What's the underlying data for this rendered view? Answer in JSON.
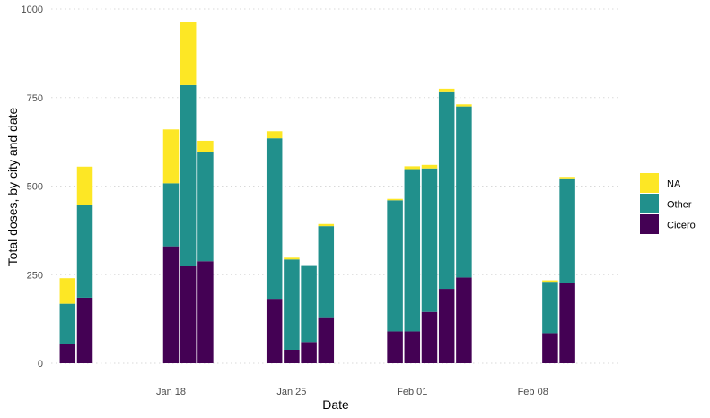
{
  "chart_data": {
    "type": "bar",
    "stacked": true,
    "xlabel": "Date",
    "ylabel": "Total doses, by city and date",
    "ylim": [
      0,
      1000
    ],
    "yticks": [
      0,
      250,
      500,
      750,
      1000
    ],
    "xticks": [
      {
        "label": "Jan 18",
        "date": "2021-01-18"
      },
      {
        "label": "Jan 25",
        "date": "2021-01-25"
      },
      {
        "label": "Feb 01",
        "date": "2021-02-01"
      },
      {
        "label": "Feb 08",
        "date": "2021-02-08"
      }
    ],
    "dates": [
      "2021-01-12",
      "2021-01-13",
      "2021-01-18",
      "2021-01-19",
      "2021-01-20",
      "2021-01-24",
      "2021-01-25",
      "2021-01-26",
      "2021-01-27",
      "2021-01-31",
      "2021-02-01",
      "2021-02-02",
      "2021-02-03",
      "2021-02-04",
      "2021-02-09",
      "2021-02-10"
    ],
    "series": [
      {
        "name": "Cicero",
        "color": "#440154",
        "values": [
          55,
          185,
          330,
          275,
          288,
          182,
          38,
          60,
          130,
          90,
          90,
          145,
          210,
          242,
          85,
          227
        ]
      },
      {
        "name": "Other",
        "color": "#21908C",
        "values": [
          113,
          263,
          178,
          510,
          308,
          453,
          255,
          217,
          257,
          370,
          458,
          405,
          555,
          483,
          145,
          295
        ]
      },
      {
        "name": "NA",
        "color": "#FDE725",
        "values": [
          72,
          107,
          152,
          177,
          32,
          20,
          5,
          0,
          6,
          4,
          8,
          10,
          10,
          6,
          4,
          4
        ]
      }
    ],
    "legend": {
      "position": "right",
      "order": [
        "NA",
        "Other",
        "Cicero"
      ]
    },
    "grid": true
  }
}
